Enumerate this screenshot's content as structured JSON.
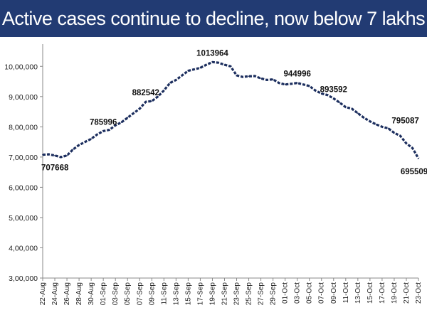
{
  "title": "Active cases continue to decline, now below 7 lakhs",
  "colors": {
    "banner": "#223b73",
    "line": "#1c2e5e",
    "axis": "#888888"
  },
  "chart_data": {
    "type": "line",
    "title": "Active cases continue to decline, now below 7 lakhs",
    "xlabel": "",
    "ylabel": "",
    "ylim": [
      300000,
      1050000
    ],
    "grid": false,
    "y_ticks": [
      {
        "value": 300000,
        "label": "3,00,000"
      },
      {
        "value": 400000,
        "label": "4,00,000"
      },
      {
        "value": 500000,
        "label": "5,00,000"
      },
      {
        "value": 600000,
        "label": "6,00,000"
      },
      {
        "value": 700000,
        "label": "7,00,000"
      },
      {
        "value": 800000,
        "label": "8,00,000"
      },
      {
        "value": 900000,
        "label": "9,00,000"
      },
      {
        "value": 1000000,
        "label": "10,00,000"
      }
    ],
    "x_tick_labels": [
      "22-Aug",
      "24-Aug",
      "26-Aug",
      "28-Aug",
      "30-Aug",
      "01-Sep",
      "03-Sep",
      "05-Sep",
      "07-Sep",
      "09-Sep",
      "11-Sep",
      "13-Sep",
      "15-Sep",
      "17-Sep",
      "19-Sep",
      "21-Sep",
      "23-Sep",
      "25-Sep",
      "27-Sep",
      "29-Sep",
      "01-Oct",
      "03-Oct",
      "05-Oct",
      "07-Oct",
      "09-Oct",
      "11-Oct",
      "13-Oct",
      "15-Oct",
      "17-Oct",
      "19-Oct",
      "21-Oct",
      "23-Oct"
    ],
    "categories": [
      "22-Aug",
      "23-Aug",
      "24-Aug",
      "25-Aug",
      "26-Aug",
      "27-Aug",
      "28-Aug",
      "29-Aug",
      "30-Aug",
      "31-Aug",
      "01-Sep",
      "02-Sep",
      "03-Sep",
      "04-Sep",
      "05-Sep",
      "06-Sep",
      "07-Sep",
      "08-Sep",
      "09-Sep",
      "10-Sep",
      "11-Sep",
      "12-Sep",
      "13-Sep",
      "14-Sep",
      "15-Sep",
      "16-Sep",
      "17-Sep",
      "18-Sep",
      "19-Sep",
      "20-Sep",
      "21-Sep",
      "22-Sep",
      "23-Sep",
      "24-Sep",
      "25-Sep",
      "26-Sep",
      "27-Sep",
      "28-Sep",
      "29-Sep",
      "30-Sep",
      "01-Oct",
      "02-Oct",
      "03-Oct",
      "04-Oct",
      "05-Oct",
      "06-Oct",
      "07-Oct",
      "08-Oct",
      "09-Oct",
      "10-Oct",
      "11-Oct",
      "12-Oct",
      "13-Oct",
      "14-Oct",
      "15-Oct",
      "16-Oct",
      "17-Oct",
      "18-Oct",
      "19-Oct",
      "20-Oct",
      "21-Oct",
      "22-Oct",
      "23-Oct"
    ],
    "series": [
      {
        "name": "Active cases",
        "values": [
          707668,
          709000,
          705000,
          700000,
          705000,
          725000,
          740000,
          750000,
          760000,
          775000,
          785996,
          790000,
          805000,
          815000,
          830000,
          845000,
          860000,
          882542,
          885000,
          900000,
          920000,
          945000,
          955000,
          970000,
          985000,
          990000,
          995000,
          1005000,
          1013964,
          1012000,
          1005000,
          1000000,
          970000,
          965000,
          967000,
          968000,
          960000,
          955000,
          957000,
          945000,
          940000,
          942000,
          944996,
          940000,
          935000,
          920000,
          910000,
          905000,
          893592,
          880000,
          865000,
          860000,
          845000,
          830000,
          818000,
          808000,
          800000,
          795087,
          780000,
          770000,
          745000,
          730000,
          695509
        ]
      }
    ],
    "data_labels": [
      {
        "index": 0,
        "text": "707668",
        "position": "below"
      },
      {
        "index": 10,
        "text": "785996",
        "position": "above"
      },
      {
        "index": 17,
        "text": "882542",
        "position": "above"
      },
      {
        "index": 28,
        "text": "1013964",
        "position": "above"
      },
      {
        "index": 42,
        "text": "944996",
        "position": "above"
      },
      {
        "index": 48,
        "text": "893592",
        "position": "above"
      },
      {
        "index": 57,
        "text": "795087",
        "position": "above-right"
      },
      {
        "index": 62,
        "text": "695509",
        "position": "below"
      }
    ]
  }
}
